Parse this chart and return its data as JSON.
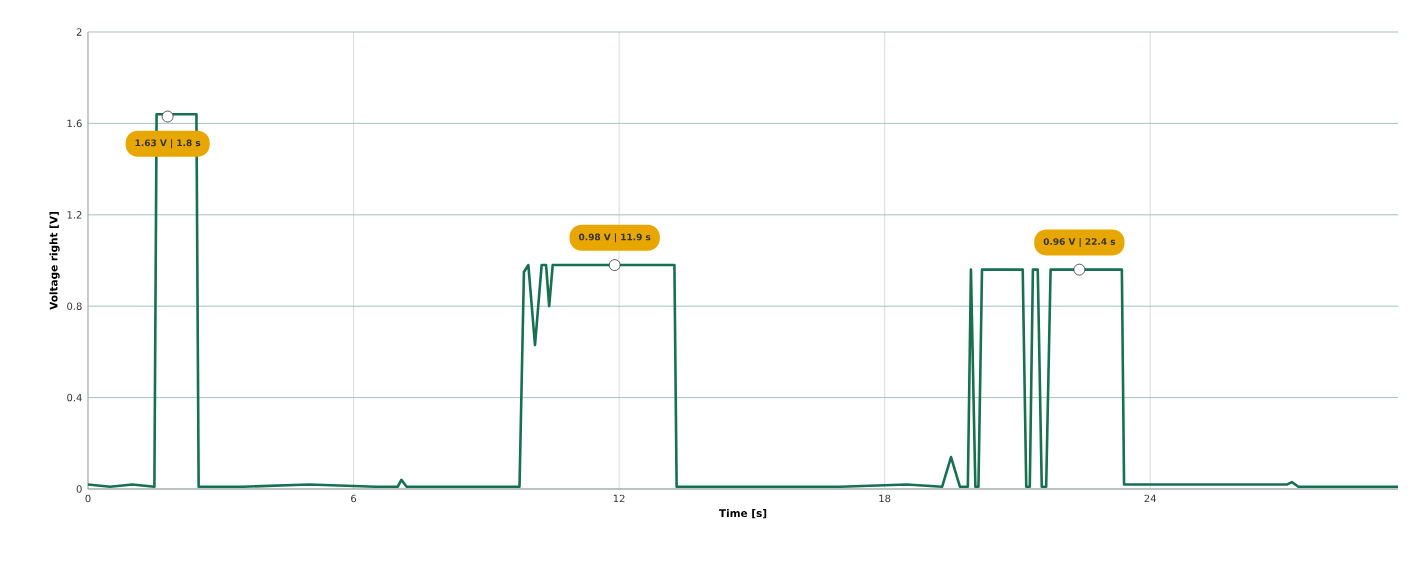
{
  "chart_data": {
    "type": "line",
    "xlabel": "Time [s]",
    "ylabel": "Voltage right [V]",
    "x": [
      0,
      0.5,
      1.0,
      1.5,
      1.55,
      2.45,
      2.5,
      3.5,
      5.0,
      6.5,
      7.0,
      7.08,
      7.2,
      8.5,
      9.75,
      9.85,
      9.95,
      10.1,
      10.25,
      10.35,
      10.42,
      10.5,
      13.25,
      13.3,
      15.0,
      17.0,
      18.5,
      19.3,
      19.5,
      19.7,
      19.88,
      19.95,
      20.05,
      20.12,
      20.2,
      21.12,
      21.2,
      21.28,
      21.35,
      21.46,
      21.55,
      21.65,
      21.75,
      23.36,
      23.41,
      25.0,
      26.5,
      27.1,
      27.2,
      27.35,
      28.5,
      29.6
    ],
    "series": [
      {
        "color": "#17704f",
        "values": [
          0.02,
          0.01,
          0.02,
          0.01,
          1.64,
          1.64,
          0.01,
          0.01,
          0.02,
          0.01,
          0.01,
          0.04,
          0.01,
          0.01,
          0.01,
          0.95,
          0.98,
          0.63,
          0.98,
          0.98,
          0.8,
          0.98,
          0.98,
          0.01,
          0.01,
          0.01,
          0.02,
          0.01,
          0.14,
          0.01,
          0.01,
          0.96,
          0.01,
          0.01,
          0.96,
          0.96,
          0.01,
          0.01,
          0.96,
          0.96,
          0.01,
          0.01,
          0.96,
          0.96,
          0.02,
          0.02,
          0.02,
          0.02,
          0.03,
          0.01,
          0.01,
          0.01
        ]
      }
    ],
    "xlim": [
      0,
      29.6
    ],
    "ylim": [
      0,
      2
    ],
    "xticks": [
      0,
      6,
      12,
      18,
      24
    ],
    "yticks": [
      0,
      0.4,
      0.8,
      1.2,
      1.6,
      2
    ],
    "grid": true,
    "annotations": [
      {
        "text": "1.63 V | 1.8 s",
        "x": 1.8,
        "y": 1.63
      },
      {
        "text": "0.98 V | 11.9 s",
        "x": 11.9,
        "y": 0.98
      },
      {
        "text": "0.96 V | 22.4 s",
        "x": 22.4,
        "y": 0.96
      }
    ]
  }
}
